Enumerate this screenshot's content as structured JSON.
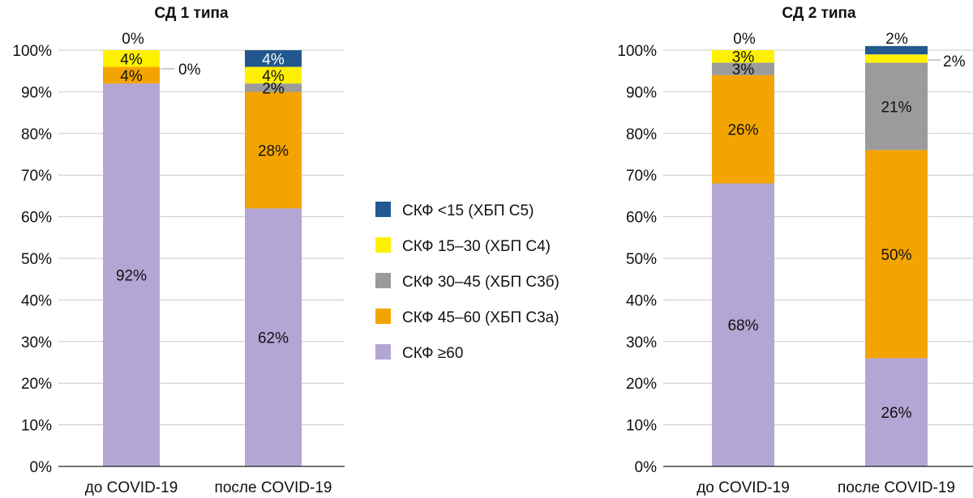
{
  "colors": {
    "egfr_lt15": "#23588f",
    "egfr_15_30": "#fff000",
    "egfr_30_45": "#9b9b9b",
    "egfr_45_60": "#f4a400",
    "egfr_ge60": "#b3a6d4"
  },
  "legend": {
    "items": [
      {
        "label": "СКФ <15 (ХБП С5)",
        "color_key": "egfr_lt15"
      },
      {
        "label": "СКФ 15–30 (ХБП С4)",
        "color_key": "egfr_15_30"
      },
      {
        "label": "СКФ 30–45 (ХБП С3б)",
        "color_key": "egfr_30_45"
      },
      {
        "label": "СКФ 45–60 (ХБП С3а)",
        "color_key": "egfr_45_60"
      },
      {
        "label": "СКФ ≥60",
        "color_key": "egfr_ge60"
      }
    ]
  },
  "chart_data": [
    {
      "type": "bar",
      "stacked": true,
      "title": "СД 1 типа",
      "categories": [
        "до COVID-19",
        "после COVID-19"
      ],
      "ylim": [
        0,
        100
      ],
      "yticks": [
        "0%",
        "10%",
        "20%",
        "30%",
        "40%",
        "50%",
        "60%",
        "70%",
        "80%",
        "90%",
        "100%"
      ],
      "grid": true,
      "series": [
        {
          "name": "СКФ ≥60",
          "values": [
            92,
            62
          ],
          "labels": [
            "92%",
            "62%"
          ]
        },
        {
          "name": "СКФ 45–60 (ХБП С3а)",
          "values": [
            4,
            28
          ],
          "labels": [
            "4%",
            "28%"
          ]
        },
        {
          "name": "СКФ 30–45 (ХБП С3б)",
          "values": [
            0,
            2
          ],
          "labels": [
            "0%",
            "2%"
          ]
        },
        {
          "name": "СКФ 15–30 (ХБП С4)",
          "values": [
            4,
            4
          ],
          "labels": [
            "4%",
            "4%"
          ]
        },
        {
          "name": "СКФ <15 (ХБП С5)",
          "values": [
            0,
            4
          ],
          "labels": [
            "0%",
            "4%"
          ]
        }
      ]
    },
    {
      "type": "bar",
      "stacked": true,
      "title": "СД 2 типа",
      "categories": [
        "до COVID-19",
        "после COVID-19"
      ],
      "ylim": [
        0,
        100
      ],
      "yticks": [
        "0%",
        "10%",
        "20%",
        "30%",
        "40%",
        "50%",
        "60%",
        "70%",
        "80%",
        "90%",
        "100%"
      ],
      "grid": true,
      "series": [
        {
          "name": "СКФ ≥60",
          "values": [
            68,
            26
          ],
          "labels": [
            "68%",
            "26%"
          ]
        },
        {
          "name": "СКФ 45–60 (ХБП С3а)",
          "values": [
            26,
            50
          ],
          "labels": [
            "26%",
            "50%"
          ]
        },
        {
          "name": "СКФ 30–45 (ХБП С3б)",
          "values": [
            3,
            21
          ],
          "labels": [
            "3%",
            "21%"
          ]
        },
        {
          "name": "СКФ 15–30 (ХБП С4)",
          "values": [
            3,
            2
          ],
          "labels": [
            "3%",
            "2%"
          ]
        },
        {
          "name": "СКФ <15 (ХБП С5)",
          "values": [
            0,
            2
          ],
          "labels": [
            "0%",
            "2%"
          ]
        }
      ]
    }
  ]
}
